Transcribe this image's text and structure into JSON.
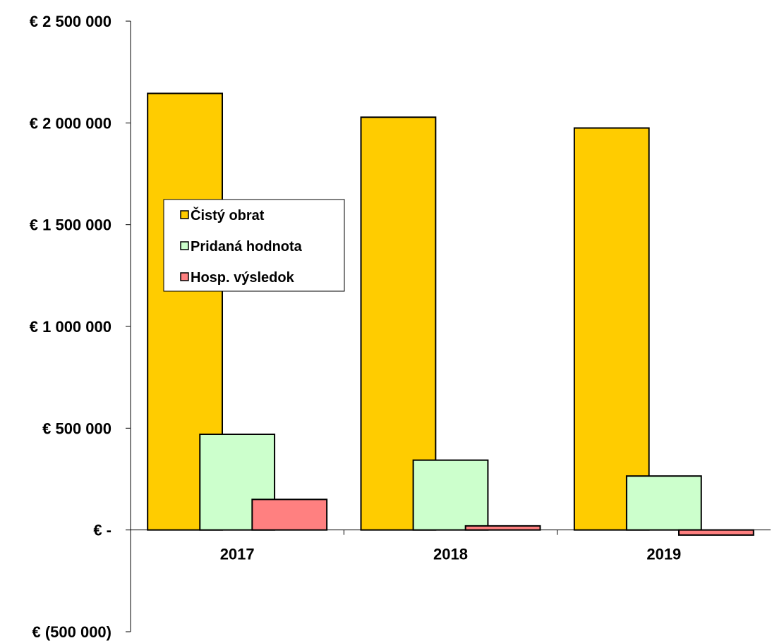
{
  "chart_data": {
    "type": "bar",
    "categories": [
      "2017",
      "2018",
      "2019"
    ],
    "series": [
      {
        "name": "Čistý obrat",
        "color": "#FFCC00",
        "values": [
          2145000,
          2028000,
          1975000
        ]
      },
      {
        "name": "Pridaná hodnota",
        "color": "#CCFFCC",
        "values": [
          470000,
          343000,
          265000
        ]
      },
      {
        "name": "Hosp. výsledok",
        "color": "#FF8080",
        "values": [
          150000,
          20000,
          -25000
        ]
      }
    ],
    "ylim": [
      -500000,
      2500000
    ],
    "yticks": [
      {
        "value": 2500000,
        "label": "€ 2 500 000"
      },
      {
        "value": 2000000,
        "label": "€ 2 000 000"
      },
      {
        "value": 1500000,
        "label": "€ 1 500 000"
      },
      {
        "value": 1000000,
        "label": "€ 1 000 000"
      },
      {
        "value": 500000,
        "label": "€ 500 000"
      },
      {
        "value": 0,
        "label": "€ -"
      },
      {
        "value": -500000,
        "label": "€ (500 000)"
      }
    ],
    "legend": {
      "position": "upper-left"
    },
    "grid": false
  }
}
